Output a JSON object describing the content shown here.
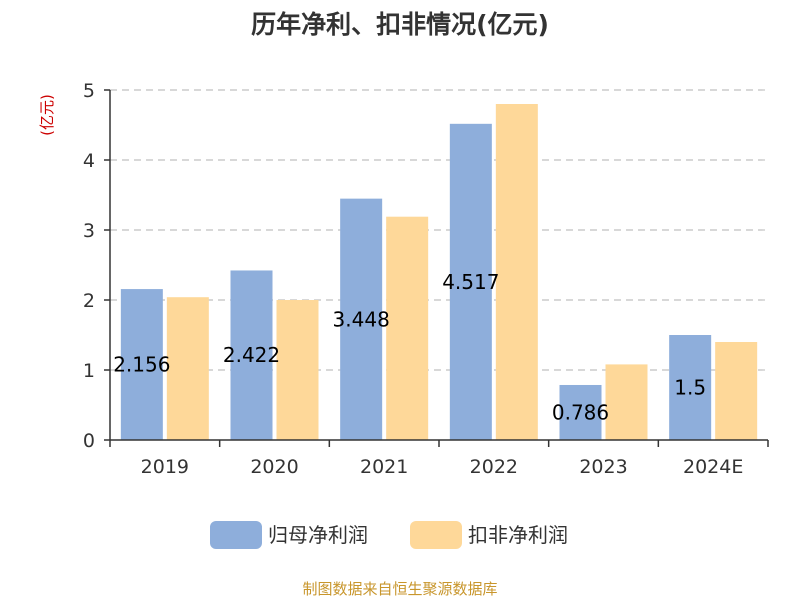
{
  "chart_data": {
    "type": "bar",
    "title": "历年净利、扣非情况(亿元)",
    "ylabel": "(亿元)",
    "categories": [
      "2019",
      "2020",
      "2021",
      "2022",
      "2023",
      "2024E"
    ],
    "series": [
      {
        "name": "归母净利润",
        "values": [
          2.156,
          2.422,
          3.448,
          4.517,
          0.786,
          1.5
        ],
        "labels": [
          "2.156",
          "2.422",
          "3.448",
          "4.517",
          "0.786",
          "1.5"
        ],
        "color": "#8eaedb"
      },
      {
        "name": "扣非净利润",
        "values": [
          2.04,
          2.0,
          3.19,
          4.8,
          1.08,
          1.4
        ],
        "color": "#fed899"
      }
    ],
    "ylim": [
      0,
      5
    ],
    "yticks": [
      0,
      1,
      2,
      3,
      4,
      5
    ],
    "grid": true,
    "legend": "bottom",
    "source": "制图数据来自恒生聚源数据库",
    "colors": {
      "unit": "#cc0000",
      "source": "#c8962c",
      "grid": "#cccccc",
      "axis": "#333333"
    }
  }
}
